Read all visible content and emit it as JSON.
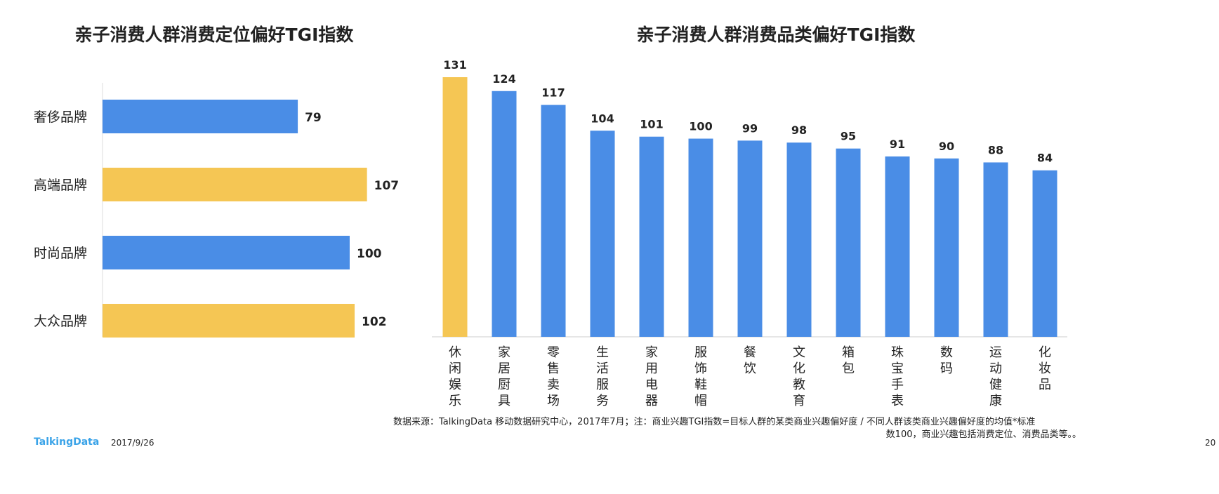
{
  "colors": {
    "blue": "#4a8de6",
    "yellow": "#f5c654"
  },
  "chart_data": [
    {
      "type": "bar",
      "orientation": "horizontal",
      "title": "亲子消费人群消费定位偏好TGI指数",
      "categories": [
        "奢侈品牌",
        "高端品牌",
        "时尚品牌",
        "大众品牌"
      ],
      "values": [
        79,
        107,
        100,
        102
      ],
      "highlight": [
        false,
        true,
        false,
        true
      ],
      "xlim": [
        0,
        110
      ]
    },
    {
      "type": "bar",
      "orientation": "vertical",
      "title": "亲子消费人群消费品类偏好TGI指数",
      "categories": [
        "休闲娱乐",
        "家居厨具",
        "零售卖场",
        "生活服务",
        "家用电器",
        "服饰鞋帽",
        "餐饮",
        "文化教育",
        "箱包",
        "珠宝手表",
        "数码",
        "运动健康",
        "化妆品"
      ],
      "values": [
        131,
        124,
        117,
        104,
        101,
        100,
        99,
        98,
        95,
        91,
        90,
        88,
        84
      ],
      "highlight": [
        true,
        false,
        false,
        false,
        false,
        false,
        false,
        false,
        false,
        false,
        false,
        false,
        false
      ],
      "ylim": [
        0,
        135
      ]
    }
  ],
  "footer": {
    "source_line1": "数据来源：TalkingData 移动数据研究中心，2017年7月；注：商业兴趣TGI指数=目标人群的某类商业兴趣偏好度 / 不同人群该类商业兴趣偏好度的均值*标准",
    "source_line2": "数100，商业兴趣包括消费定位、消费品类等。。",
    "logo": "TalkingData",
    "date": "2017/9/26",
    "page": "20"
  }
}
